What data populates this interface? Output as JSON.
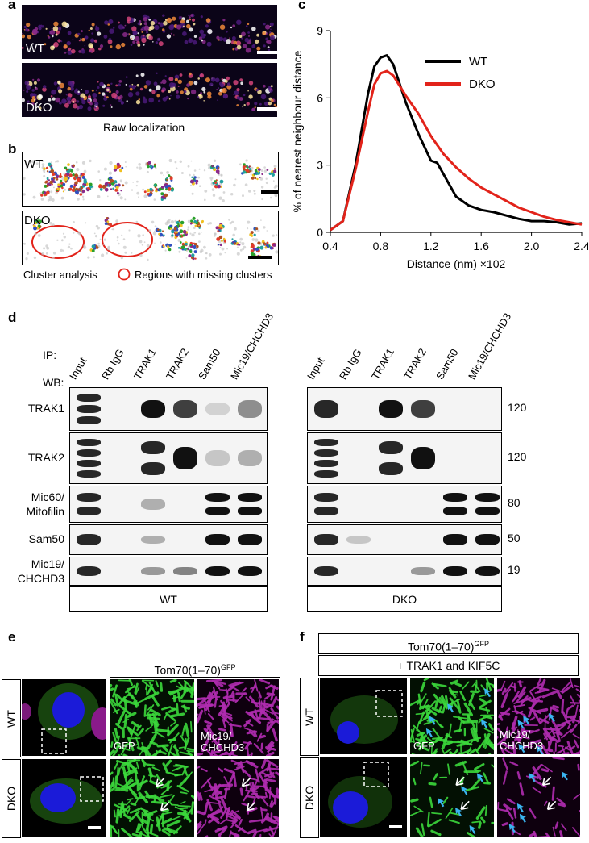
{
  "panels": {
    "a": "a",
    "b": "b",
    "c": "c",
    "d": "d",
    "e": "e",
    "f": "f"
  },
  "a": {
    "wt": "WT",
    "dko": "DKO",
    "caption": "Raw localization"
  },
  "b": {
    "wt": "WT",
    "dko": "DKO",
    "caption": "Cluster analysis",
    "legend": "Regions with missing clusters"
  },
  "chart_data": {
    "type": "line",
    "xlabel": "Distance (nm) ×102",
    "ylabel": "% of nearest neighbour distance",
    "xlim": [
      0.4,
      2.4
    ],
    "ylim": [
      0,
      9
    ],
    "xticks": [
      "0.4",
      "0.8",
      "1.2",
      "1.6",
      "2.0",
      "2.4"
    ],
    "yticks": [
      "0",
      "3",
      "6",
      "9"
    ],
    "legend_position": "top-right",
    "series": [
      {
        "name": "WT",
        "color": "#000000",
        "x": [
          0.4,
          0.5,
          0.6,
          0.7,
          0.75,
          0.8,
          0.85,
          0.9,
          1.0,
          1.1,
          1.2,
          1.25,
          1.3,
          1.4,
          1.5,
          1.6,
          1.7,
          1.8,
          1.9,
          2.0,
          2.1,
          2.2,
          2.3,
          2.4
        ],
        "y": [
          0.1,
          0.5,
          3.0,
          6.2,
          7.4,
          7.8,
          7.9,
          7.5,
          5.8,
          4.4,
          3.2,
          3.1,
          2.6,
          1.6,
          1.2,
          1.0,
          0.9,
          0.75,
          0.6,
          0.5,
          0.5,
          0.45,
          0.35,
          0.4
        ]
      },
      {
        "name": "DKO",
        "color": "#e2231a",
        "x": [
          0.4,
          0.5,
          0.6,
          0.7,
          0.75,
          0.8,
          0.85,
          0.9,
          1.0,
          1.1,
          1.2,
          1.3,
          1.4,
          1.5,
          1.6,
          1.7,
          1.8,
          1.9,
          2.0,
          2.1,
          2.2,
          2.3,
          2.4
        ],
        "y": [
          0.1,
          0.5,
          2.8,
          5.4,
          6.6,
          7.1,
          7.2,
          7.0,
          6.1,
          5.3,
          4.3,
          3.5,
          2.9,
          2.4,
          2.0,
          1.7,
          1.4,
          1.1,
          0.9,
          0.7,
          0.55,
          0.45,
          0.35
        ]
      }
    ]
  },
  "d": {
    "ip_label": "IP:",
    "wb_label": "WB:",
    "lanes": [
      "Input",
      "Rb IgG",
      "TRAK1",
      "TRAK2",
      "Sam50",
      "Mic19/CHCHD3"
    ],
    "rows": [
      {
        "name": "TRAK1",
        "mw": "120"
      },
      {
        "name": "TRAK2",
        "mw": "120"
      },
      {
        "name": "Mic60/\nMitofilin",
        "mw": "80"
      },
      {
        "name": "Sam50",
        "mw": "50"
      },
      {
        "name": "Mic19/\nCHCHD3",
        "mw": "19"
      }
    ],
    "wt": "WT",
    "dko": "DKO"
  },
  "e": {
    "construct": "Tom70(1–70)",
    "sup": "GFP",
    "wt": "WT",
    "dko": "DKO",
    "gfp": "GFP",
    "mic19": "Mic19/\nCHCHD3"
  },
  "f": {
    "construct": "Tom70(1–70)",
    "sup": "GFP",
    "cotransfect": "+ TRAK1 and KIF5C",
    "wt": "WT",
    "dko": "DKO",
    "gfp": "GFP",
    "mic19": "Mic19/\nCHCHD3"
  }
}
